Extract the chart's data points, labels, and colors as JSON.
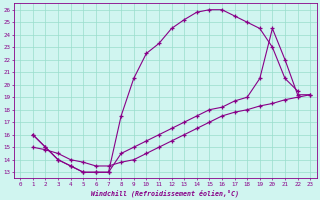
{
  "bg_color": "#d0f5f0",
  "grid_color": "#99ddcc",
  "line_color": "#880088",
  "xlim": [
    -0.5,
    23.5
  ],
  "ylim": [
    12.5,
    26.5
  ],
  "xticks": [
    0,
    1,
    2,
    3,
    4,
    5,
    6,
    7,
    8,
    9,
    10,
    11,
    12,
    13,
    14,
    15,
    16,
    17,
    18,
    19,
    20,
    21,
    22,
    23
  ],
  "yticks": [
    13,
    14,
    15,
    16,
    17,
    18,
    19,
    20,
    21,
    22,
    23,
    24,
    25,
    26
  ],
  "xlabel": "Windchill (Refroidissement éolien,°C)",
  "curve1_x": [
    1,
    2,
    3,
    4,
    5,
    6,
    7,
    8,
    9,
    10,
    11,
    12,
    13,
    14,
    15,
    16,
    17,
    18,
    19,
    20,
    21,
    22
  ],
  "curve1_y": [
    16,
    15,
    14,
    13.5,
    13,
    13,
    13,
    17.5,
    20.5,
    22.5,
    23.3,
    24.5,
    25.2,
    25.8,
    26,
    26,
    25.5,
    25,
    24.5,
    23,
    20.5,
    19.5
  ],
  "curve2_x": [
    1,
    2,
    3,
    4,
    5,
    6,
    7,
    8,
    9,
    10,
    11,
    12,
    13,
    14,
    15,
    16,
    17,
    18,
    19,
    20,
    21,
    22,
    23
  ],
  "curve2_y": [
    16,
    15,
    14,
    13.5,
    13,
    13,
    13,
    14.5,
    15,
    15.5,
    16,
    16.5,
    17,
    17.5,
    18,
    18.2,
    18.7,
    19,
    20.5,
    24.5,
    22,
    19.2,
    19.2
  ],
  "curve3_x": [
    1,
    2,
    3,
    4,
    5,
    6,
    7,
    8,
    9,
    10,
    11,
    12,
    13,
    14,
    15,
    16,
    17,
    18,
    19,
    20,
    21,
    22,
    23
  ],
  "curve3_y": [
    15,
    14.8,
    14.5,
    14,
    13.8,
    13.5,
    13.5,
    13.8,
    14,
    14.5,
    15,
    15.5,
    16,
    16.5,
    17,
    17.5,
    17.8,
    18,
    18.3,
    18.5,
    18.8,
    19,
    19.2
  ]
}
